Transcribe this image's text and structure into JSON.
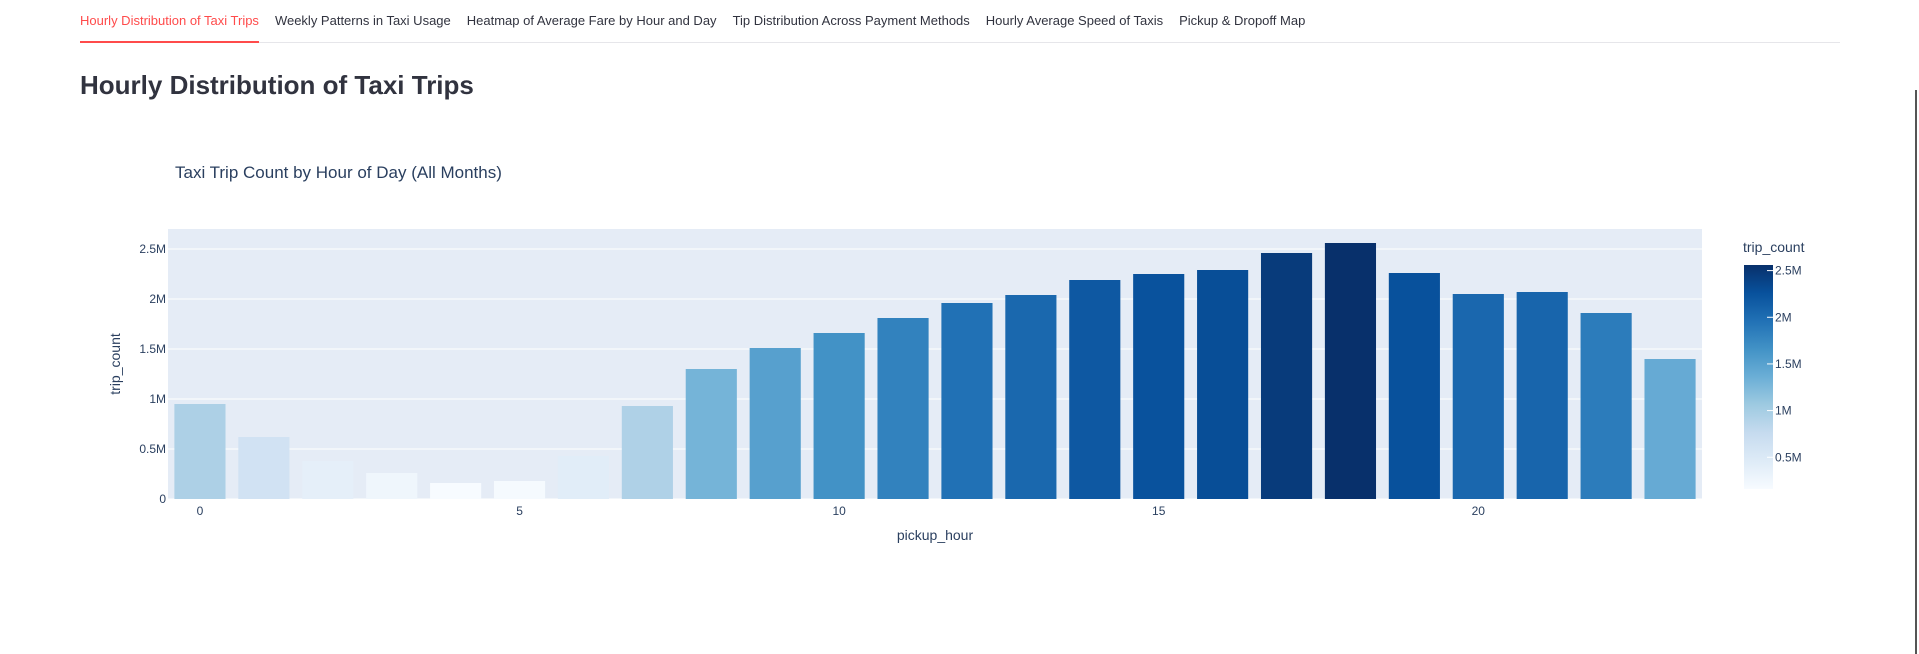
{
  "tabs": [
    {
      "label": "Hourly Distribution of Taxi Trips",
      "active": true
    },
    {
      "label": "Weekly Patterns in Taxi Usage",
      "active": false
    },
    {
      "label": "Heatmap of Average Fare by Hour and Day",
      "active": false
    },
    {
      "label": "Tip Distribution Across Payment Methods",
      "active": false
    },
    {
      "label": "Hourly Average Speed of Taxis",
      "active": false
    },
    {
      "label": "Pickup & Dropoff Map",
      "active": false
    }
  ],
  "page": {
    "title": "Hourly Distribution of Taxi Trips"
  },
  "colors": {
    "accent": "#ff4b4b",
    "plot_bg": "#e5ecf6",
    "text": "#31333f",
    "colorscale": "Blues"
  },
  "chart_data": {
    "type": "bar",
    "title": "Taxi Trip Count by Hour of Day (All Months)",
    "xlabel": "pickup_hour",
    "ylabel": "trip_count",
    "x": [
      0,
      1,
      2,
      3,
      4,
      5,
      6,
      7,
      8,
      9,
      10,
      11,
      12,
      13,
      14,
      15,
      16,
      17,
      18,
      19,
      20,
      21,
      22,
      23
    ],
    "values": [
      950000,
      620000,
      380000,
      260000,
      160000,
      180000,
      430000,
      930000,
      1300000,
      1510000,
      1660000,
      1810000,
      1960000,
      2040000,
      2190000,
      2250000,
      2290000,
      2460000,
      2560000,
      2260000,
      2050000,
      2070000,
      1860000,
      1400000
    ],
    "ylim": [
      0,
      2700000
    ],
    "y_ticks": [
      {
        "v": 0,
        "label": "0"
      },
      {
        "v": 500000,
        "label": "0.5M"
      },
      {
        "v": 1000000,
        "label": "1M"
      },
      {
        "v": 1500000,
        "label": "1.5M"
      },
      {
        "v": 2000000,
        "label": "2M"
      },
      {
        "v": 2500000,
        "label": "2.5M"
      }
    ],
    "x_ticks": [
      {
        "v": 0,
        "label": "0"
      },
      {
        "v": 5,
        "label": "5"
      },
      {
        "v": 10,
        "label": "10"
      },
      {
        "v": 15,
        "label": "15"
      },
      {
        "v": 20,
        "label": "20"
      }
    ],
    "colorbar": {
      "title": "trip_count",
      "range": [
        160000,
        2560000
      ],
      "ticks": [
        {
          "v": 500000,
          "label": "0.5M"
        },
        {
          "v": 1000000,
          "label": "1M"
        },
        {
          "v": 1500000,
          "label": "1.5M"
        },
        {
          "v": 2000000,
          "label": "2M"
        },
        {
          "v": 2500000,
          "label": "2.5M"
        }
      ]
    },
    "grid": true,
    "legend": "colorbar-right"
  }
}
